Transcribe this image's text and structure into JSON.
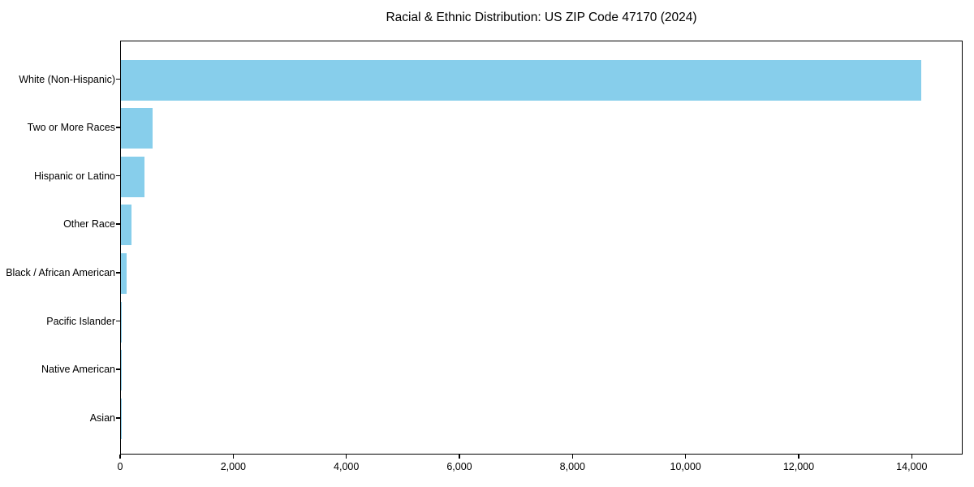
{
  "chart_data": {
    "type": "bar",
    "orientation": "horizontal",
    "title": "Racial & Ethnic Distribution: US ZIP Code 47170 (2024)",
    "categories": [
      "White (Non-Hispanic)",
      "Two or More Races",
      "Hispanic or Latino",
      "Other Race",
      "Black / African American",
      "Pacific Islander",
      "Native American",
      "Asian"
    ],
    "values": [
      14180,
      565,
      410,
      190,
      105,
      15,
      5,
      2
    ],
    "xlabel": "",
    "ylabel": "",
    "xlim": [
      0,
      14900
    ],
    "xticks": [
      0,
      2000,
      4000,
      6000,
      8000,
      10000,
      12000,
      14000
    ],
    "xtick_labels": [
      "0",
      "2,000",
      "4,000",
      "6,000",
      "8,000",
      "10,000",
      "12,000",
      "14,000"
    ],
    "bar_color": "#87CEEB",
    "axis_color": "#000000",
    "text_color": "#000000",
    "background_color": "#ffffff",
    "grid": false,
    "legend_position": "none"
  }
}
